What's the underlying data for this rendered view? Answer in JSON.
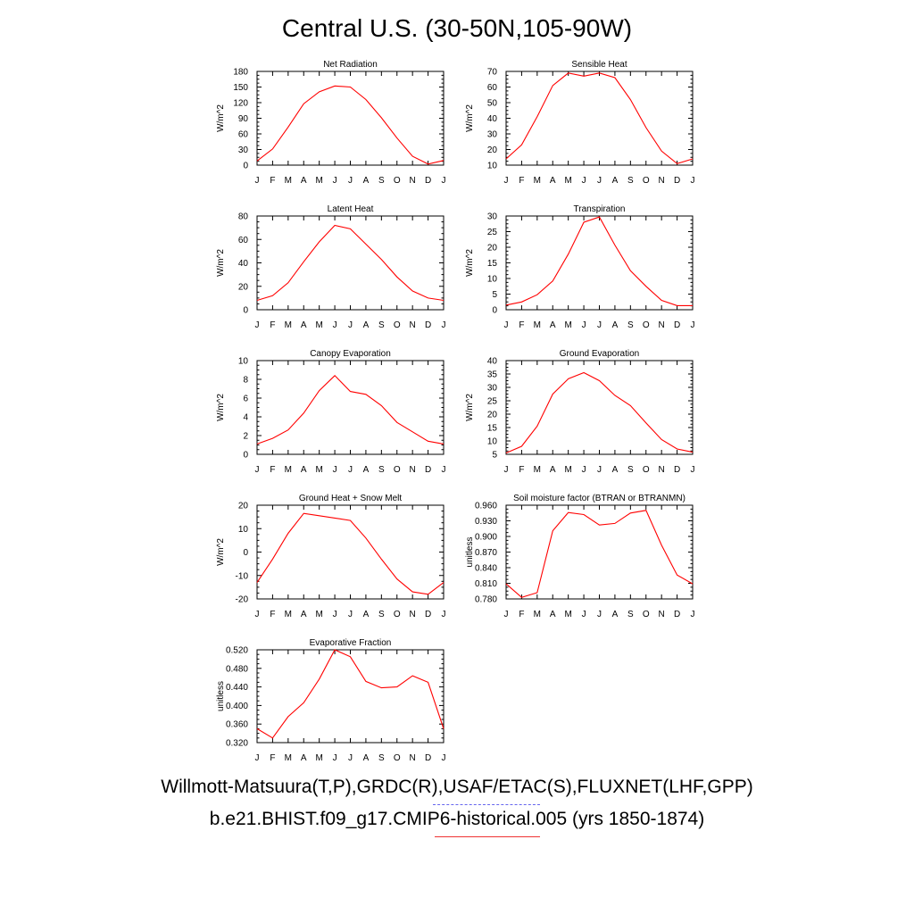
{
  "title": "Central U.S. (30-50N,105-90W)",
  "months": [
    "J",
    "F",
    "M",
    "A",
    "M",
    "J",
    "J",
    "A",
    "S",
    "O",
    "N",
    "D",
    "J"
  ],
  "colors": {
    "model": "#ff0000",
    "observed": "#6666ee",
    "axis": "#000000"
  },
  "legend": {
    "observed_label": "Willmott-Matsuura(T,P),GRDC(R),USAF/ETAC(S),FLUXNET(LHF,GPP)",
    "model_label": "b.e21.BHIST.f09_g17.CMIP6-historical.005 (yrs 1850-1874)"
  },
  "chart_data": [
    {
      "type": "line",
      "title": "Net Radiation",
      "ylabel": "W/m^2",
      "ylim": [
        0,
        180
      ],
      "yticks": [
        "0",
        "30",
        "60",
        "90",
        "120",
        "150",
        "180"
      ],
      "series": [
        {
          "values": [
            8,
            31,
            73,
            118,
            141,
            152,
            150,
            126,
            91,
            52,
            17,
            2,
            9
          ]
        }
      ]
    },
    {
      "type": "line",
      "title": "Sensible Heat",
      "ylabel": "W/m^2",
      "ylim": [
        10,
        70
      ],
      "yticks": [
        "10",
        "20",
        "30",
        "40",
        "50",
        "60",
        "70"
      ],
      "series": [
        {
          "values": [
            14,
            23,
            41,
            61,
            69,
            67,
            69,
            66,
            52,
            34,
            19,
            11,
            14
          ]
        }
      ]
    },
    {
      "type": "line",
      "title": "Latent Heat",
      "ylabel": "W/m^2",
      "ylim": [
        0,
        80
      ],
      "yticks": [
        "0",
        "20",
        "40",
        "60",
        "80"
      ],
      "series": [
        {
          "values": [
            8,
            12,
            23,
            41,
            58,
            72,
            69,
            56,
            43,
            28,
            16,
            10,
            8
          ]
        }
      ]
    },
    {
      "type": "line",
      "title": "Transpiration",
      "ylabel": "W/m^2",
      "ylim": [
        0,
        30
      ],
      "yticks": [
        "0",
        "5",
        "10",
        "15",
        "20",
        "25",
        "30"
      ],
      "series": [
        {
          "values": [
            1.5,
            2.5,
            4.8,
            9.2,
            17.8,
            28,
            29.7,
            20.7,
            12.5,
            7.5,
            3,
            1.3,
            1.3
          ]
        }
      ]
    },
    {
      "type": "line",
      "title": "Canopy Evaporation",
      "ylabel": "W/m^2",
      "ylim": [
        0,
        10
      ],
      "yticks": [
        "0",
        "2",
        "4",
        "6",
        "8",
        "10"
      ],
      "series": [
        {
          "values": [
            1.1,
            1.7,
            2.6,
            4.4,
            6.8,
            8.4,
            6.7,
            6.4,
            5.2,
            3.4,
            2.4,
            1.4,
            1.1
          ]
        }
      ]
    },
    {
      "type": "line",
      "title": "Ground Evaporation",
      "ylabel": "W/m^2",
      "ylim": [
        5,
        40
      ],
      "yticks": [
        "5",
        "10",
        "15",
        "20",
        "25",
        "30",
        "35",
        "40"
      ],
      "series": [
        {
          "values": [
            5.5,
            8,
            15.5,
            27.5,
            33.2,
            35.5,
            32.5,
            27,
            23.2,
            16.7,
            10.5,
            7,
            5.8
          ]
        }
      ]
    },
    {
      "type": "line",
      "title": "Ground Heat + Snow Melt",
      "ylabel": "W/m^2",
      "ylim": [
        -20,
        20
      ],
      "yticks": [
        "-20",
        "-10",
        "0",
        "10",
        "20"
      ],
      "series": [
        {
          "values": [
            -13,
            -3,
            8,
            16.5,
            15.5,
            14.5,
            13.5,
            6,
            -3,
            -11.5,
            -17,
            -18,
            -13
          ]
        }
      ]
    },
    {
      "type": "line",
      "title": "Soil moisture factor (BTRAN or BTRANMN)",
      "ylabel": "unitless",
      "ylim": [
        0.78,
        0.96
      ],
      "yticks": [
        "0.780",
        "0.810",
        "0.840",
        "0.870",
        "0.900",
        "0.930",
        "0.960"
      ],
      "series": [
        {
          "values": [
            0.809,
            0.783,
            0.792,
            0.911,
            0.946,
            0.942,
            0.922,
            0.925,
            0.945,
            0.95,
            0.883,
            0.826,
            0.809
          ]
        }
      ]
    },
    {
      "type": "line",
      "title": "Evaporative Fraction",
      "ylabel": "unitless",
      "ylim": [
        0.32,
        0.52
      ],
      "yticks": [
        "0.320",
        "0.360",
        "0.400",
        "0.440",
        "0.480",
        "0.520"
      ],
      "series": [
        {
          "values": [
            0.35,
            0.33,
            0.376,
            0.406,
            0.457,
            0.52,
            0.505,
            0.452,
            0.438,
            0.44,
            0.464,
            0.45,
            0.35
          ]
        }
      ]
    }
  ]
}
